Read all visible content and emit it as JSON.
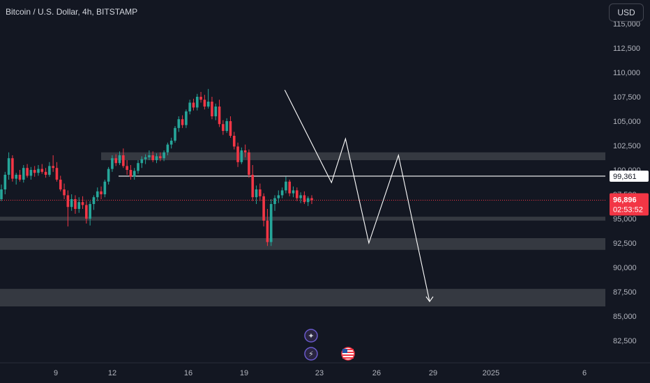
{
  "header": {
    "title": "Bitcoin / U.S. Dollar, 4h, BITSTAMP",
    "currency_button": "USD"
  },
  "colors": {
    "background": "#131722",
    "up": "#26a69a",
    "down": "#f23645",
    "zone": "#3c3f47",
    "text": "#b2b5be",
    "price_label": "#f23645",
    "level_line": "#ffffff"
  },
  "icons": [
    "compass-icon",
    "lightning-icon",
    "us-flag-icon"
  ],
  "chart_data": {
    "type": "candlestick",
    "title": "Bitcoin / U.S. Dollar, 4h, BITSTAMP",
    "ylim": [
      81500,
      116000
    ],
    "y_ticks": [
      "115,000",
      "112,500",
      "110,000",
      "107,500",
      "105,000",
      "102,500",
      "100,000",
      "97,500",
      "95,000",
      "92,500",
      "90,000",
      "87,500",
      "85,000",
      "82,500"
    ],
    "x_ticks": [
      "9",
      "12",
      "16",
      "19",
      "23",
      "26",
      "29",
      "2025",
      "6"
    ],
    "last_price": "96,896",
    "countdown": "02:53:52",
    "level_label": "99,361",
    "level": 99361,
    "zones": [
      {
        "from": 101000,
        "to": 101800
      },
      {
        "from": 94800,
        "to": 95200
      },
      {
        "from": 91800,
        "to": 93000
      },
      {
        "from": 86000,
        "to": 87800
      }
    ],
    "projection": [
      {
        "x": "Dec 21 06:00",
        "y": 108200
      },
      {
        "x": "Dec 23 18:00",
        "y": 98700
      },
      {
        "x": "Dec 24 12:00",
        "y": 103200
      },
      {
        "x": "Dec 25 18:00",
        "y": 92500
      },
      {
        "x": "Dec 27 08:00",
        "y": 101500
      },
      {
        "x": "Dec 29 00:00",
        "y": 86500
      }
    ],
    "candles": [
      [
        97000,
        98500,
        96800,
        98000
      ],
      [
        98000,
        99800,
        97500,
        99500
      ],
      [
        99500,
        101800,
        99000,
        101200
      ],
      [
        101200,
        101500,
        98800,
        99100
      ],
      [
        99100,
        99700,
        98500,
        99500
      ],
      [
        99500,
        100000,
        98800,
        99000
      ],
      [
        99000,
        100500,
        98700,
        100200
      ],
      [
        100200,
        100600,
        99200,
        99400
      ],
      [
        99400,
        100300,
        99000,
        100000
      ],
      [
        100000,
        100400,
        99300,
        99700
      ],
      [
        99700,
        100500,
        99400,
        100100
      ],
      [
        100100,
        100600,
        99600,
        99800
      ],
      [
        99800,
        100200,
        99200,
        99500
      ],
      [
        99500,
        100800,
        99300,
        100400
      ],
      [
        100400,
        101500,
        99800,
        100200
      ],
      [
        100200,
        100800,
        98800,
        99000
      ],
      [
        99000,
        99400,
        97800,
        98000
      ],
      [
        98000,
        98600,
        97000,
        97400
      ],
      [
        97400,
        97900,
        94200,
        96200
      ],
      [
        96200,
        97500,
        95800,
        97000
      ],
      [
        97000,
        97400,
        95500,
        96000
      ],
      [
        96000,
        97200,
        95600,
        96700
      ],
      [
        96700,
        97300,
        96000,
        96400
      ],
      [
        96400,
        96800,
        94500,
        95000
      ],
      [
        95000,
        96800,
        94300,
        96500
      ],
      [
        96500,
        97400,
        95900,
        97200
      ],
      [
        97200,
        98200,
        96800,
        97800
      ],
      [
        97800,
        98300,
        97000,
        97500
      ],
      [
        97500,
        99000,
        97200,
        98800
      ],
      [
        98800,
        100300,
        98500,
        100100
      ],
      [
        100100,
        101500,
        99800,
        101200
      ],
      [
        101200,
        101600,
        100400,
        100700
      ],
      [
        100700,
        101900,
        100500,
        101500
      ],
      [
        101500,
        102200,
        100200,
        100400
      ],
      [
        100400,
        101000,
        99500,
        100000
      ],
      [
        100000,
        100500,
        99000,
        99300
      ],
      [
        99300,
        100200,
        99000,
        99900
      ],
      [
        99900,
        101000,
        99600,
        100700
      ],
      [
        100700,
        101400,
        100200,
        101100
      ],
      [
        101100,
        101600,
        100600,
        101300
      ],
      [
        101300,
        102000,
        101000,
        101500
      ],
      [
        101500,
        101900,
        100800,
        101000
      ],
      [
        101000,
        101700,
        100700,
        101400
      ],
      [
        101400,
        101800,
        100900,
        101200
      ],
      [
        101200,
        102000,
        100900,
        101800
      ],
      [
        101800,
        102800,
        101500,
        102600
      ],
      [
        102600,
        103300,
        102200,
        103000
      ],
      [
        103000,
        104500,
        102800,
        104300
      ],
      [
        104300,
        105500,
        103900,
        105200
      ],
      [
        105200,
        105600,
        104300,
        104600
      ],
      [
        104600,
        106200,
        104300,
        106000
      ],
      [
        106000,
        107200,
        105700,
        106900
      ],
      [
        106900,
        107300,
        106100,
        106400
      ],
      [
        106400,
        107800,
        106100,
        107500
      ],
      [
        107500,
        108000,
        106900,
        107200
      ],
      [
        107200,
        107700,
        106200,
        106500
      ],
      [
        106500,
        108300,
        106300,
        107000
      ],
      [
        107000,
        107500,
        105200,
        105500
      ],
      [
        105500,
        106800,
        105100,
        106500
      ],
      [
        106500,
        107200,
        104400,
        104700
      ],
      [
        104700,
        105100,
        103600,
        104000
      ],
      [
        104000,
        105300,
        103800,
        105000
      ],
      [
        105000,
        105500,
        103300,
        103500
      ],
      [
        103500,
        103900,
        102100,
        102400
      ],
      [
        102400,
        102800,
        100300,
        100800
      ],
      [
        100800,
        102300,
        100600,
        102000
      ],
      [
        102000,
        102600,
        101300,
        101800
      ],
      [
        101800,
        102100,
        99200,
        99500
      ],
      [
        99500,
        100500,
        96800,
        97200
      ],
      [
        97200,
        98400,
        96500,
        98000
      ],
      [
        98000,
        98600,
        96800,
        97300
      ],
      [
        97300,
        97600,
        94200,
        94800
      ],
      [
        94800,
        96000,
        92200,
        92600
      ],
      [
        92600,
        97000,
        92200,
        96500
      ],
      [
        96500,
        97400,
        95800,
        97100
      ],
      [
        97100,
        97900,
        96600,
        97400
      ],
      [
        97400,
        98200,
        97100,
        97900
      ],
      [
        97900,
        99300,
        97600,
        98800
      ],
      [
        98800,
        99000,
        97300,
        97600
      ],
      [
        97600,
        98300,
        97200,
        97900
      ],
      [
        97900,
        98200,
        96800,
        97100
      ],
      [
        97100,
        97700,
        96600,
        97400
      ],
      [
        97400,
        97800,
        96500,
        96700
      ],
      [
        96700,
        97300,
        96300,
        97100
      ],
      [
        97100,
        97400,
        96500,
        96896
      ]
    ]
  }
}
